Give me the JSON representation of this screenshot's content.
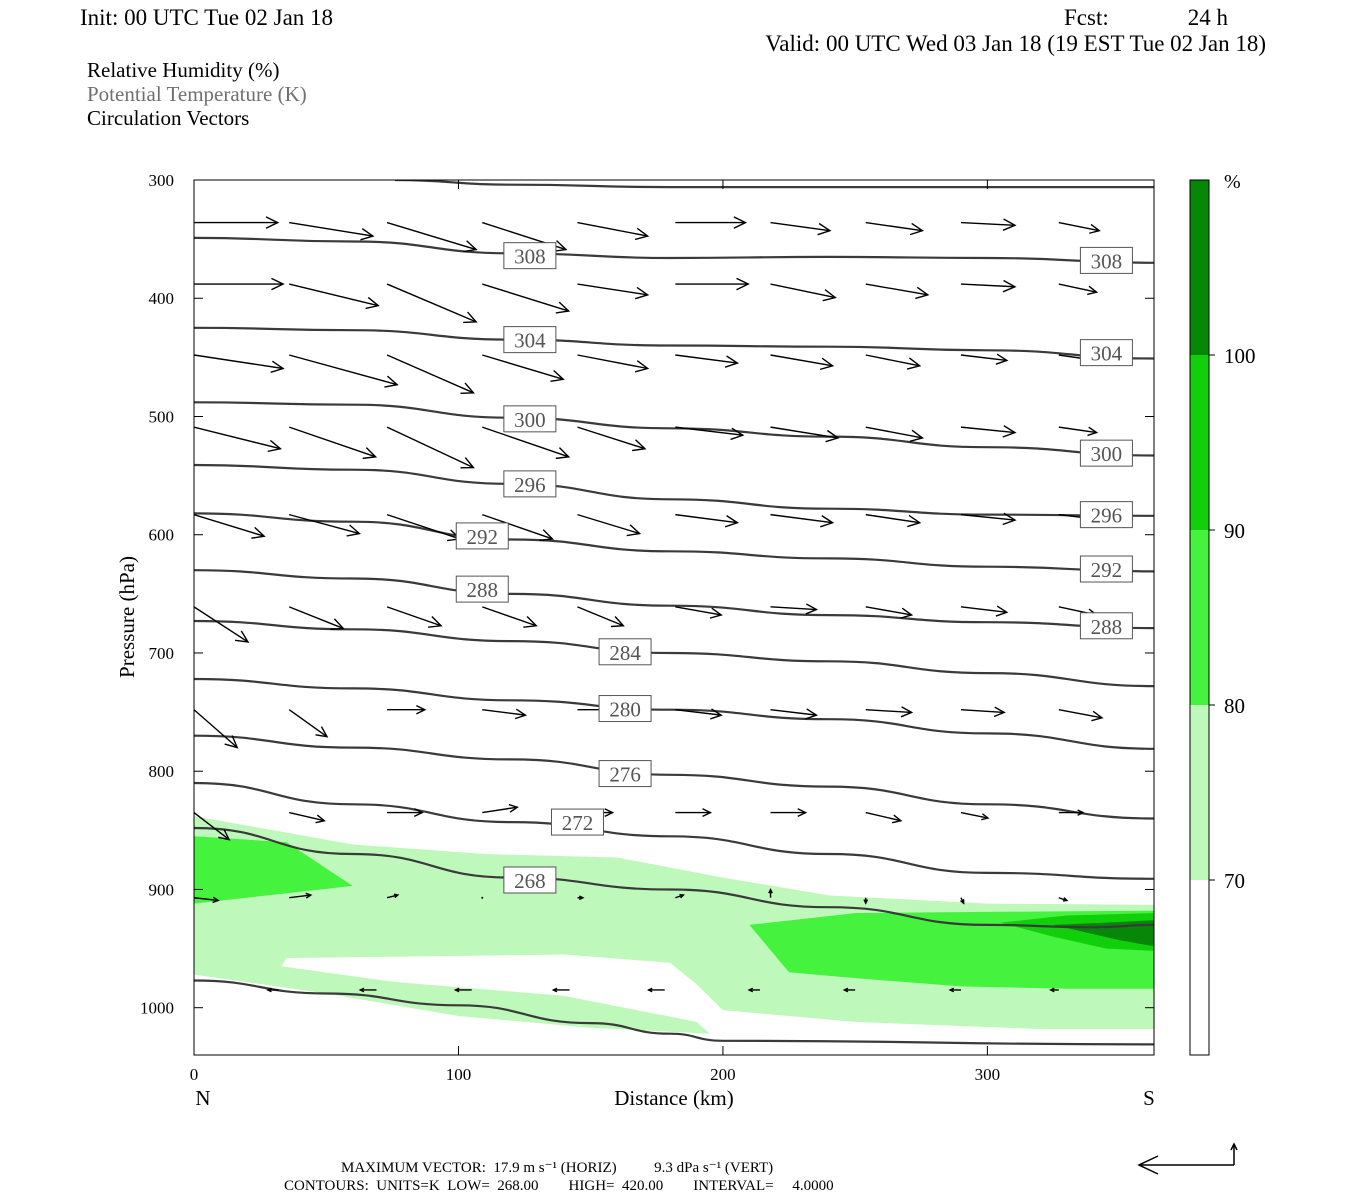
{
  "header": {
    "init": "Init: 00 UTC Tue 02 Jan 18",
    "fcst_label": "Fcst:",
    "fcst_hours": "24 h",
    "valid": "Valid: 00 UTC Wed 03 Jan 18 (19 EST Tue 02 Jan 18)",
    "fields": [
      "Relative Humidity (%)",
      "Potential Temperature (K)",
      "Circulation Vectors"
    ]
  },
  "footer": {
    "max_vector": "MAXIMUM VECTOR:  17.9 m s⁻¹ (HORIZ)          9.3 dPa s⁻¹ (VERT)",
    "contours": "CONTOURS:  UNITS=K  LOW=  268.00        HIGH=  420.00        INTERVAL=     4.0000"
  },
  "colors": {
    "rh_70": "#bff8bb",
    "rh_80": "#45f23d",
    "rh_90": "#12cf0b",
    "rh_100": "#078707",
    "theta_line": "#3a3a3a",
    "field_gray": "#707070"
  },
  "chart_data": {
    "type": "cross-section",
    "xlabel": "Distance (km)",
    "ylabel": "Pressure (hPa)",
    "x_ticks": [
      0,
      100,
      200,
      300
    ],
    "x_end_labels": {
      "left": "N",
      "right": "S"
    },
    "y_ticks": [
      300,
      400,
      500,
      600,
      700,
      800,
      900,
      1000
    ],
    "xlim": [
      0,
      363
    ],
    "ylim": [
      1040,
      300
    ],
    "colorbar": {
      "unit": "%",
      "levels": [
        70,
        80,
        90,
        100
      ],
      "colors": [
        "#ffffff",
        "#bff8bb",
        "#45f23d",
        "#12cf0b",
        "#078707"
      ]
    },
    "rh_regions": [
      {
        "level": 70,
        "points": [
          [
            0,
            838
          ],
          [
            30,
            850
          ],
          [
            60,
            862
          ],
          [
            110,
            870
          ],
          [
            160,
            873
          ],
          [
            200,
            890
          ],
          [
            240,
            905
          ],
          [
            300,
            912
          ],
          [
            363,
            913
          ],
          [
            363,
            1018
          ],
          [
            320,
            1018
          ],
          [
            250,
            1012
          ],
          [
            200,
            1002
          ],
          [
            190,
            980
          ],
          [
            180,
            962
          ],
          [
            140,
            955
          ],
          [
            70,
            957
          ],
          [
            35,
            958
          ],
          [
            33,
            965
          ],
          [
            75,
            978
          ],
          [
            140,
            990
          ],
          [
            190,
            1012
          ],
          [
            195,
            1022
          ],
          [
            150,
            1017
          ],
          [
            100,
            1007
          ],
          [
            50,
            988
          ],
          [
            0,
            972
          ]
        ]
      },
      {
        "level": 80,
        "points": [
          [
            0,
            855
          ],
          [
            35,
            860
          ],
          [
            60,
            897
          ],
          [
            0,
            912
          ]
        ]
      },
      {
        "level": 80,
        "points": [
          [
            210,
            930
          ],
          [
            250,
            920
          ],
          [
            300,
            919
          ],
          [
            363,
            918
          ],
          [
            363,
            984
          ],
          [
            330,
            984
          ],
          [
            290,
            982
          ],
          [
            250,
            975
          ],
          [
            225,
            970
          ]
        ]
      },
      {
        "level": 90,
        "points": [
          [
            305,
            928
          ],
          [
            330,
            922
          ],
          [
            363,
            920
          ],
          [
            363,
            952
          ],
          [
            345,
            950
          ],
          [
            325,
            940
          ]
        ]
      },
      {
        "level": 100,
        "points": [
          [
            325,
            930
          ],
          [
            345,
            928
          ],
          [
            363,
            926
          ],
          [
            363,
            948
          ],
          [
            350,
            943
          ]
        ]
      }
    ],
    "theta_contours": [
      {
        "theta": 308,
        "labels": [
          [
            127,
            364
          ],
          [
            345,
            368
          ]
        ],
        "points": [
          [
            0,
            349
          ],
          [
            60,
            352
          ],
          [
            120,
            362
          ],
          [
            180,
            366
          ],
          [
            240,
            365
          ],
          [
            300,
            366
          ],
          [
            363,
            370
          ]
        ]
      },
      {
        "theta": 304,
        "labels": [
          [
            127,
            435
          ],
          [
            345,
            446
          ]
        ],
        "points": [
          [
            0,
            425
          ],
          [
            60,
            427
          ],
          [
            120,
            435
          ],
          [
            180,
            440
          ],
          [
            240,
            441
          ],
          [
            300,
            444
          ],
          [
            363,
            451
          ]
        ]
      },
      {
        "theta": 300,
        "labels": [
          [
            127,
            502
          ],
          [
            345,
            531
          ]
        ],
        "points": [
          [
            0,
            488
          ],
          [
            60,
            490
          ],
          [
            120,
            501
          ],
          [
            180,
            510
          ],
          [
            240,
            517
          ],
          [
            300,
            526
          ],
          [
            363,
            533
          ]
        ]
      },
      {
        "theta": 296,
        "labels": [
          [
            127,
            557
          ],
          [
            345,
            583
          ]
        ],
        "points": [
          [
            0,
            541
          ],
          [
            60,
            545
          ],
          [
            120,
            557
          ],
          [
            180,
            570
          ],
          [
            240,
            578
          ],
          [
            300,
            583
          ],
          [
            363,
            584
          ]
        ]
      },
      {
        "theta": 292,
        "labels": [
          [
            109,
            601
          ],
          [
            345,
            629
          ]
        ],
        "points": [
          [
            0,
            582
          ],
          [
            60,
            589
          ],
          [
            120,
            604
          ],
          [
            180,
            614
          ],
          [
            240,
            620
          ],
          [
            300,
            627
          ],
          [
            363,
            631
          ]
        ]
      },
      {
        "theta": 288,
        "labels": [
          [
            109,
            646
          ],
          [
            345,
            677
          ]
        ],
        "points": [
          [
            0,
            630
          ],
          [
            60,
            637
          ],
          [
            120,
            650
          ],
          [
            180,
            660
          ],
          [
            240,
            668
          ],
          [
            300,
            674
          ],
          [
            363,
            679
          ]
        ]
      },
      {
        "theta": 284,
        "labels": [
          [
            163,
            699
          ]
        ],
        "points": [
          [
            0,
            673
          ],
          [
            60,
            680
          ],
          [
            120,
            690
          ],
          [
            180,
            700
          ],
          [
            240,
            707
          ],
          [
            300,
            717
          ],
          [
            363,
            728
          ]
        ]
      },
      {
        "theta": 280,
        "labels": [
          [
            163,
            747
          ]
        ],
        "points": [
          [
            0,
            722
          ],
          [
            60,
            730
          ],
          [
            120,
            740
          ],
          [
            180,
            748
          ],
          [
            240,
            756
          ],
          [
            300,
            768
          ],
          [
            363,
            781
          ]
        ]
      },
      {
        "theta": 276,
        "labels": [
          [
            163,
            802
          ]
        ],
        "points": [
          [
            0,
            770
          ],
          [
            60,
            780
          ],
          [
            120,
            790
          ],
          [
            180,
            803
          ],
          [
            240,
            813
          ],
          [
            300,
            828
          ],
          [
            363,
            840
          ]
        ]
      },
      {
        "theta": 272,
        "labels": [
          [
            145,
            843
          ]
        ],
        "points": [
          [
            0,
            810
          ],
          [
            60,
            828
          ],
          [
            120,
            843
          ],
          [
            180,
            855
          ],
          [
            240,
            870
          ],
          [
            300,
            886
          ],
          [
            363,
            891
          ]
        ]
      },
      {
        "theta": 268,
        "labels": [
          [
            127,
            892
          ]
        ],
        "points": [
          [
            0,
            848
          ],
          [
            60,
            870
          ],
          [
            120,
            890
          ],
          [
            180,
            900
          ],
          [
            240,
            915
          ],
          [
            300,
            930
          ],
          [
            340,
            932
          ],
          [
            363,
            930
          ]
        ]
      }
    ],
    "surface_line": [
      [
        0,
        977
      ],
      [
        50,
        988
      ],
      [
        100,
        998
      ],
      [
        150,
        1013
      ],
      [
        180,
        1022
      ],
      [
        200,
        1028
      ],
      [
        363,
        1031
      ]
    ],
    "top_line": [
      [
        76,
        300
      ],
      [
        120,
        304
      ],
      [
        180,
        306
      ],
      [
        363,
        306
      ]
    ],
    "vectors": [
      {
        "p": 336,
        "x": [
          0,
          36,
          73,
          109,
          145,
          182,
          218,
          254,
          290,
          327
        ],
        "u": [
          31,
          31,
          33,
          31,
          26,
          26,
          22,
          21,
          20,
          15
        ],
        "v": [
          0,
          5,
          10,
          10,
          5,
          0,
          3,
          3,
          1,
          3
        ]
      },
      {
        "p": 388,
        "x": [
          0,
          36,
          73,
          109,
          145,
          182,
          218,
          254,
          290,
          327
        ],
        "u": [
          33,
          33,
          33,
          32,
          26,
          27,
          24,
          23,
          20,
          14
        ],
        "v": [
          0,
          8,
          14,
          10,
          4,
          0,
          5,
          4,
          1,
          3
        ]
      },
      {
        "p": 448,
        "x": [
          0,
          36,
          73,
          109,
          145,
          182,
          218,
          254,
          290,
          327
        ],
        "u": [
          33,
          40,
          32,
          30,
          26,
          23,
          23,
          20,
          17,
          14
        ],
        "v": [
          5,
          11,
          14,
          9,
          5,
          3,
          4,
          4,
          2,
          2
        ]
      },
      {
        "p": 509,
        "x": [
          0,
          36,
          73,
          109,
          145,
          182,
          218,
          254,
          290,
          327
        ],
        "u": [
          32,
          32,
          32,
          32,
          25,
          25,
          25,
          21,
          20,
          14
        ],
        "v": [
          8,
          11,
          15,
          11,
          8,
          3,
          4,
          4,
          2,
          2
        ]
      },
      {
        "p": 583,
        "x": [
          0,
          36,
          73,
          109,
          145,
          182,
          218,
          254,
          290,
          327
        ],
        "u": [
          26,
          26,
          27,
          26,
          23,
          23,
          23,
          20,
          20,
          17
        ],
        "v": [
          8,
          7,
          9,
          9,
          7,
          3,
          3,
          3,
          2,
          2
        ]
      },
      {
        "p": 661,
        "x": [
          0,
          36,
          73,
          109,
          145,
          182,
          218,
          254,
          290,
          327
        ],
        "u": [
          20,
          20,
          20,
          20,
          17,
          17,
          17,
          17,
          17,
          14
        ],
        "v": [
          13,
          8,
          7,
          7,
          7,
          3,
          1,
          3,
          2,
          3
        ]
      },
      {
        "p": 748,
        "x": [
          0,
          36,
          73,
          109,
          145,
          182,
          218,
          254,
          290,
          327
        ],
        "u": [
          16,
          14,
          14,
          16,
          17,
          17,
          17,
          17,
          16,
          16
        ],
        "v": [
          14,
          10,
          0,
          2,
          0,
          2,
          2,
          1,
          1,
          3
        ]
      },
      {
        "p": 835,
        "x": [
          0,
          36,
          73,
          109,
          145,
          182,
          218,
          254,
          290,
          327
        ],
        "u": [
          13,
          13,
          13,
          13,
          13,
          13,
          13,
          13,
          10,
          9
        ],
        "v": [
          10,
          3,
          0,
          -2,
          0,
          0,
          0,
          3,
          2,
          0
        ]
      },
      {
        "p": 907,
        "x": [
          0,
          36,
          73,
          109,
          145,
          182,
          218,
          254,
          290,
          327
        ],
        "u": [
          9,
          8,
          4,
          0,
          2,
          3,
          0,
          0,
          1,
          3
        ],
        "v": [
          1,
          -1,
          -1,
          0,
          0,
          -1,
          -3,
          2,
          2,
          1
        ]
      },
      {
        "p": 985,
        "x": [
          32,
          69,
          105,
          142,
          178,
          214,
          250,
          290,
          327
        ],
        "u": [
          -4,
          -6,
          -6,
          -6,
          -6,
          -4,
          -4,
          -4,
          -3
        ],
        "v": [
          0,
          0,
          0,
          0,
          0,
          0,
          0,
          0,
          0
        ]
      }
    ]
  }
}
